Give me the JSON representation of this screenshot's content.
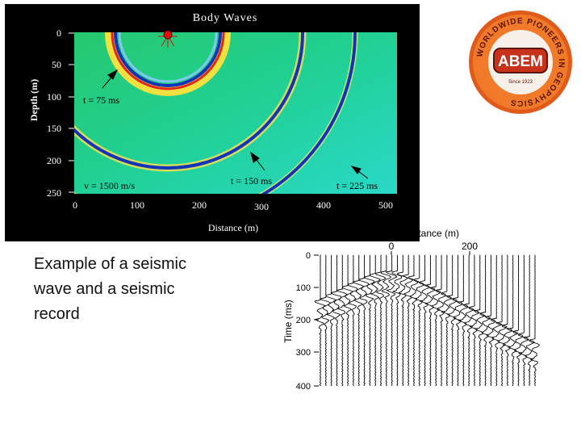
{
  "wave_figure": {
    "title": "Body Waves",
    "ylabel": "Depth (m)",
    "xlabel": "Distance (m)",
    "yticks": [
      "0",
      "50",
      "100",
      "150",
      "200",
      "250"
    ],
    "xticks": [
      "0",
      "100",
      "200",
      "300",
      "400",
      "500"
    ],
    "labels": {
      "t75": "t = 75 ms",
      "t150": "t = 150 ms",
      "t225": "t = 225 ms",
      "velocity": "v = 1500 m/s"
    },
    "colors": {
      "background": "#1fd07a",
      "wavefront": "#1533b8",
      "source": "#e01010"
    }
  },
  "logo": {
    "text": "ABEM",
    "ring_text": "WORLDWIDE PIONEERS IN GEOPHYSICS",
    "since": "Since 1923"
  },
  "caption": {
    "lines": [
      "Example of a seismic",
      "wave and a seismic",
      "record"
    ]
  },
  "record": {
    "xlabel": "Distance (m)",
    "xticks": [
      "0",
      "200"
    ],
    "ylabel": "Time (ms)",
    "yticks": [
      "0",
      "100",
      "200",
      "300",
      "400"
    ]
  }
}
